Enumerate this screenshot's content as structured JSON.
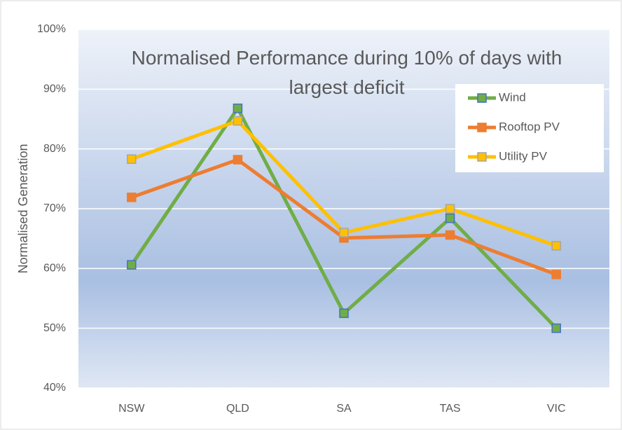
{
  "chart_data": {
    "type": "line",
    "title": "Normalised Performance during 10% of days with largest deficit",
    "y_label": "Normalised Generation",
    "categories": [
      "NSW",
      "QLD",
      "SA",
      "TAS",
      "VIC"
    ],
    "series": [
      {
        "name": "Wind",
        "color": "#70ad47",
        "marker_edge": "#4472c4",
        "values": [
          60.6,
          86.8,
          52.5,
          68.4,
          50.0
        ]
      },
      {
        "name": "Rooftop PV",
        "color": "#ed7d31",
        "marker_edge": "#ed7d31",
        "values": [
          71.9,
          78.2,
          65.1,
          65.6,
          59.0
        ]
      },
      {
        "name": "Utility PV",
        "color": "#ffc000",
        "marker_edge": "#a5a5a5",
        "values": [
          78.3,
          84.7,
          66.0,
          70.0,
          63.8
        ]
      }
    ],
    "ylim": [
      40,
      100
    ],
    "yticks": [
      {
        "value": 40,
        "label": "40%"
      },
      {
        "value": 50,
        "label": "50%"
      },
      {
        "value": 60,
        "label": "60%"
      },
      {
        "value": 70,
        "label": "70%"
      },
      {
        "value": 80,
        "label": "80%"
      },
      {
        "value": 90,
        "label": "90%"
      },
      {
        "value": 100,
        "label": "100%"
      }
    ],
    "grid": true,
    "legend": "upper right"
  }
}
